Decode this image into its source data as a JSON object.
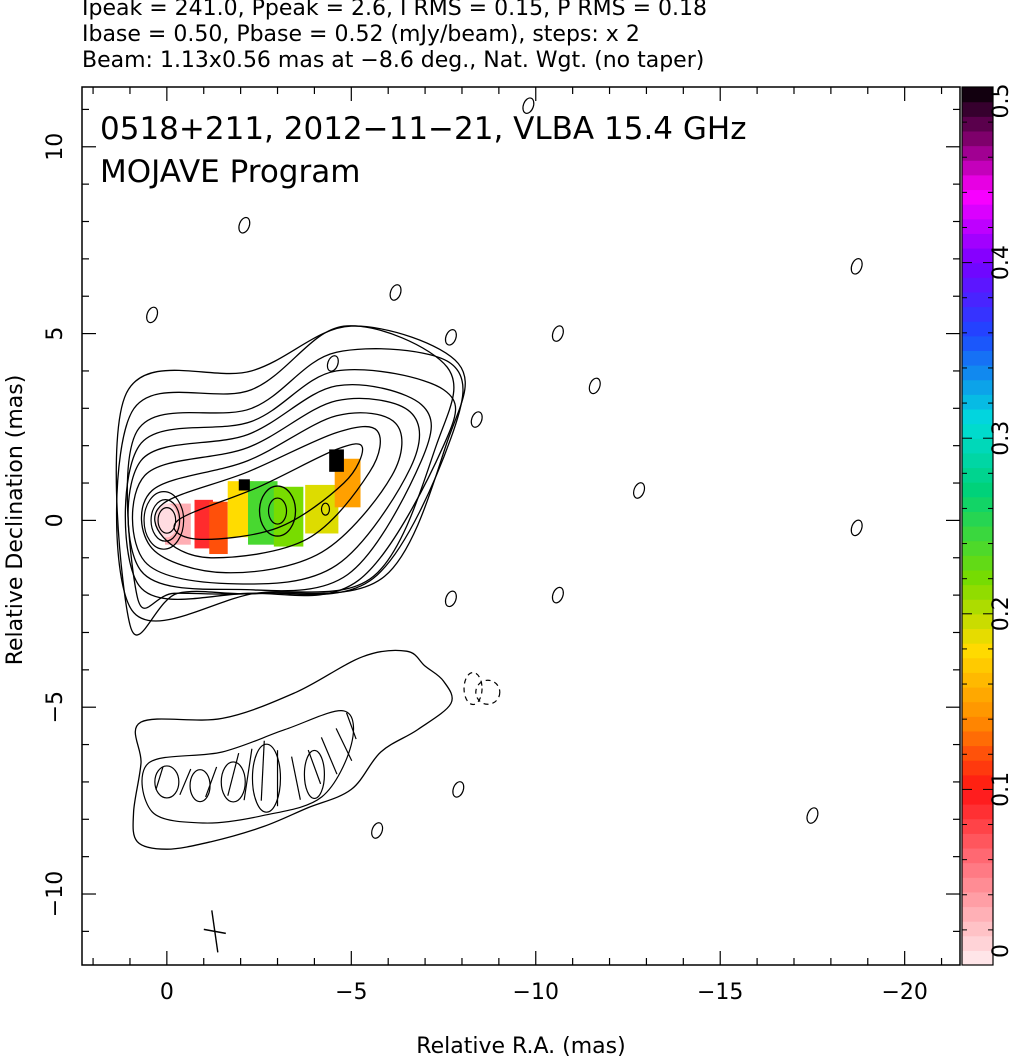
{
  "header": {
    "line1": "Ipeak = 241.0, Ppeak = 2.6, I RMS = 0.15, P RMS = 0.18",
    "line2": "Ibase = 0.50, Pbase = 0.52 (mJy/beam), steps: x 2",
    "line3": "Beam: 1.13x0.56 mas at −8.6 deg., Nat. Wgt. (no taper)"
  },
  "chart_data": {
    "type": "heatmap",
    "title": "0518+211, 2012−11−21, VLBA 15.4 GHz",
    "subtitle": "MOJAVE Program",
    "xlabel": "Relative R.A. (mas)",
    "ylabel": "Relative Declination (mas)",
    "xlim": [
      2.3,
      -21.5
    ],
    "ylim": [
      -11.9,
      11.6
    ],
    "x_ticks": [
      0,
      -5,
      -10,
      -15,
      -20
    ],
    "x_tick_labels": [
      "0",
      "−5",
      "−10",
      "−15",
      "−20"
    ],
    "y_ticks": [
      -10,
      -5,
      0,
      5,
      10
    ],
    "y_tick_labels": [
      "−10",
      "−5",
      "0",
      "5",
      "10"
    ],
    "colorbar": {
      "range": [
        0,
        0.5
      ],
      "ticks": [
        0,
        0.1,
        0.2,
        0.3,
        0.4,
        0.5
      ],
      "tick_labels": [
        "0",
        "0.1",
        "0.2",
        "0.3",
        "0.4",
        "0.5"
      ]
    },
    "core": {
      "x": 0,
      "y": 0
    },
    "upper_jet_contours": [
      [
        [
          -0.3,
          0.0
        ],
        [
          -2.5,
          0.9
        ],
        [
          -4.6,
          1.9
        ],
        [
          -5.3,
          1.95
        ],
        [
          -4.8,
          1.0
        ],
        [
          -3.0,
          -0.2
        ],
        [
          -0.8,
          -0.5
        ]
      ],
      [
        [
          0.1,
          0.45
        ],
        [
          -2.2,
          1.3
        ],
        [
          -4.6,
          2.35
        ],
        [
          -5.7,
          2.4
        ],
        [
          -5.5,
          1.3
        ],
        [
          -3.8,
          -0.5
        ],
        [
          -1.2,
          -1.0
        ],
        [
          0.1,
          -0.45
        ]
      ],
      [
        [
          0.4,
          0.8
        ],
        [
          -2.2,
          1.6
        ],
        [
          -4.6,
          2.8
        ],
        [
          -6.2,
          2.6
        ],
        [
          -6.1,
          1.2
        ],
        [
          -4.2,
          -0.85
        ],
        [
          -1.6,
          -1.4
        ],
        [
          0.4,
          -0.75
        ]
      ],
      [
        [
          0.6,
          1.2
        ],
        [
          -2.2,
          1.95
        ],
        [
          -4.6,
          3.2
        ],
        [
          -6.6,
          2.9
        ],
        [
          -6.6,
          1.4
        ],
        [
          -4.6,
          -1.2
        ],
        [
          -1.9,
          -1.7
        ],
        [
          0.6,
          -1.1
        ]
      ],
      [
        [
          0.7,
          1.6
        ],
        [
          -2.2,
          2.3
        ],
        [
          -4.6,
          3.6
        ],
        [
          -6.9,
          3.1
        ],
        [
          -6.9,
          1.6
        ],
        [
          -4.9,
          -1.45
        ],
        [
          -2.0,
          -1.85
        ],
        [
          0.7,
          -1.35
        ]
      ],
      [
        [
          0.75,
          2.0
        ],
        [
          -2.3,
          2.65
        ],
        [
          -4.6,
          4.0
        ],
        [
          -7.5,
          3.5
        ],
        [
          -7.5,
          2.0
        ],
        [
          -5.2,
          -1.6
        ],
        [
          -2.2,
          -1.95
        ],
        [
          0.75,
          -1.75
        ]
      ],
      [
        [
          0.8,
          2.4
        ],
        [
          -2.3,
          3.0
        ],
        [
          -4.6,
          4.5
        ],
        [
          -7.7,
          4.2
        ],
        [
          -7.7,
          2.2
        ],
        [
          -5.6,
          -1.55
        ],
        [
          -2.4,
          -1.95
        ],
        [
          -0.2,
          -1.95
        ],
        [
          0.8,
          -2.05
        ]
      ],
      [
        [
          0.95,
          2.9
        ],
        [
          -2.3,
          3.5
        ],
        [
          -4.8,
          5.2
        ],
        [
          -7.6,
          4.1
        ],
        [
          -7.3,
          2.0
        ],
        [
          -5.6,
          -1.5
        ],
        [
          -2.4,
          -1.95
        ],
        [
          0.95,
          -2.4
        ]
      ],
      [
        [
          1.1,
          3.4
        ],
        [
          -2.3,
          4.0
        ],
        [
          -5.0,
          5.2
        ],
        [
          -7.9,
          4.2
        ],
        [
          -7.6,
          2.1
        ],
        [
          -5.9,
          -1.5
        ],
        [
          -2.6,
          -1.95
        ],
        [
          -0.3,
          -1.95
        ],
        [
          1.0,
          -2.8
        ]
      ]
    ],
    "lower_jet_contour": [
      [
        0.7,
        -5.4
      ],
      [
        -1.5,
        -5.3
      ],
      [
        -3.5,
        -4.6
      ],
      [
        -5.3,
        -3.65
      ],
      [
        -6.5,
        -3.5
      ],
      [
        -7.0,
        -3.9
      ],
      [
        -7.5,
        -4.3
      ],
      [
        -7.7,
        -4.9
      ],
      [
        -6.8,
        -5.6
      ],
      [
        -5.8,
        -6.2
      ],
      [
        -5.0,
        -7.2
      ],
      [
        -3.8,
        -7.7
      ],
      [
        -2.6,
        -8.2
      ],
      [
        -1.2,
        -8.6
      ],
      [
        0.0,
        -8.8
      ],
      [
        0.8,
        -8.6
      ],
      [
        0.9,
        -7.8
      ],
      [
        0.7,
        -6.5
      ]
    ],
    "noise_contours": [
      {
        "x": -9.8,
        "y": 11.1
      },
      {
        "x": 0.4,
        "y": 5.5
      },
      {
        "x": -2.1,
        "y": 7.9
      },
      {
        "x": -6.2,
        "y": 6.1
      },
      {
        "x": -4.5,
        "y": 4.2
      },
      {
        "x": -7.7,
        "y": 4.9
      },
      {
        "x": -10.6,
        "y": 5.0
      },
      {
        "x": -11.6,
        "y": 3.6
      },
      {
        "x": -8.4,
        "y": 2.7
      },
      {
        "x": -12.8,
        "y": 0.8
      },
      {
        "x": -18.7,
        "y": 6.8
      },
      {
        "x": -18.7,
        "y": -0.2
      },
      {
        "x": -7.7,
        "y": -2.1
      },
      {
        "x": -10.6,
        "y": -2.0
      },
      {
        "x": -7.9,
        "y": -7.2
      },
      {
        "x": -17.5,
        "y": -7.9
      },
      {
        "x": -5.7,
        "y": -8.3
      }
    ],
    "polarization_patches": [
      {
        "x": -0.3,
        "y": -0.1,
        "w": 0.7,
        "h": 1.1,
        "value": 0.03
      },
      {
        "x": -1.0,
        "y": -0.1,
        "w": 0.5,
        "h": 1.3,
        "value": 0.09
      },
      {
        "x": -1.4,
        "y": -0.2,
        "w": 0.5,
        "h": 1.4,
        "value": 0.12
      },
      {
        "x": -2.0,
        "y": 0.3,
        "w": 0.7,
        "h": 1.5,
        "value": 0.18
      },
      {
        "x": -2.6,
        "y": 0.2,
        "w": 0.8,
        "h": 1.7,
        "value": 0.24
      },
      {
        "x": -3.3,
        "y": 0.1,
        "w": 0.8,
        "h": 1.6,
        "value": 0.22
      },
      {
        "x": -4.2,
        "y": 0.3,
        "w": 0.9,
        "h": 1.3,
        "value": 0.19
      },
      {
        "x": -4.9,
        "y": 1.0,
        "w": 0.7,
        "h": 1.3,
        "value": 0.15
      },
      {
        "x": -2.1,
        "y": 0.95,
        "w": 0.3,
        "h": 0.3,
        "value": 0.5
      },
      {
        "x": -4.6,
        "y": 1.6,
        "w": 0.4,
        "h": 0.6,
        "value": 0.5
      }
    ]
  }
}
